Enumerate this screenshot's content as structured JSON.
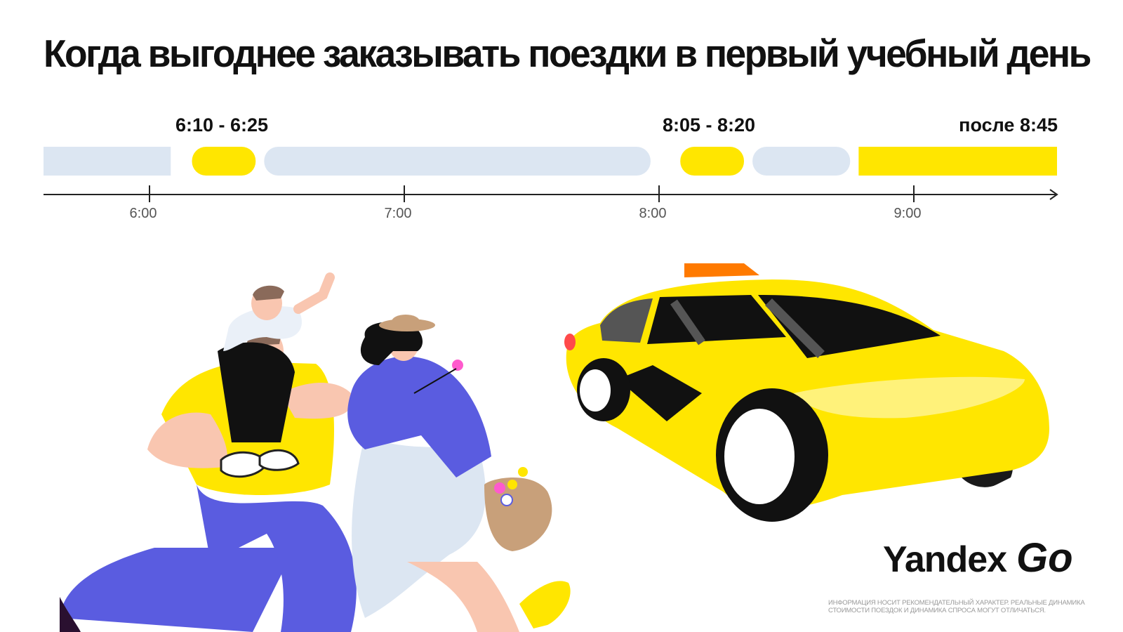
{
  "title": "Когда выгоднее заказывать поездки в первый учебный день",
  "ranges": [
    {
      "label": "6:10 - 6:25"
    },
    {
      "label": "8:05 - 8:20"
    },
    {
      "label": "после 8:45"
    }
  ],
  "timeline": {
    "ticks": [
      "6:00",
      "7:00",
      "8:00",
      "9:00"
    ],
    "segments": [
      {
        "start": "5:35",
        "end": "6:05",
        "status": "regular"
      },
      {
        "start": "6:10",
        "end": "6:25",
        "status": "recommended"
      },
      {
        "start": "6:27",
        "end": "7:58",
        "status": "regular"
      },
      {
        "start": "8:05",
        "end": "8:20",
        "status": "recommended"
      },
      {
        "start": "8:22",
        "end": "8:45",
        "status": "regular"
      },
      {
        "start": "8:47",
        "end": "9:35",
        "status": "recommended"
      }
    ]
  },
  "colors": {
    "recommended": "#FFE600",
    "regular": "#DCE6F2",
    "axis": "#222222",
    "tick_label": "#555555"
  },
  "brand": {
    "name": "Yandex",
    "product": "Go"
  },
  "disclaimer": "Информация носит рекомендательный характер. Реальные динамика стоимости поездок и динамика спроса могут отличаться.",
  "illustration": {
    "elements": [
      "family-illustration",
      "taxi-car-illustration"
    ]
  }
}
